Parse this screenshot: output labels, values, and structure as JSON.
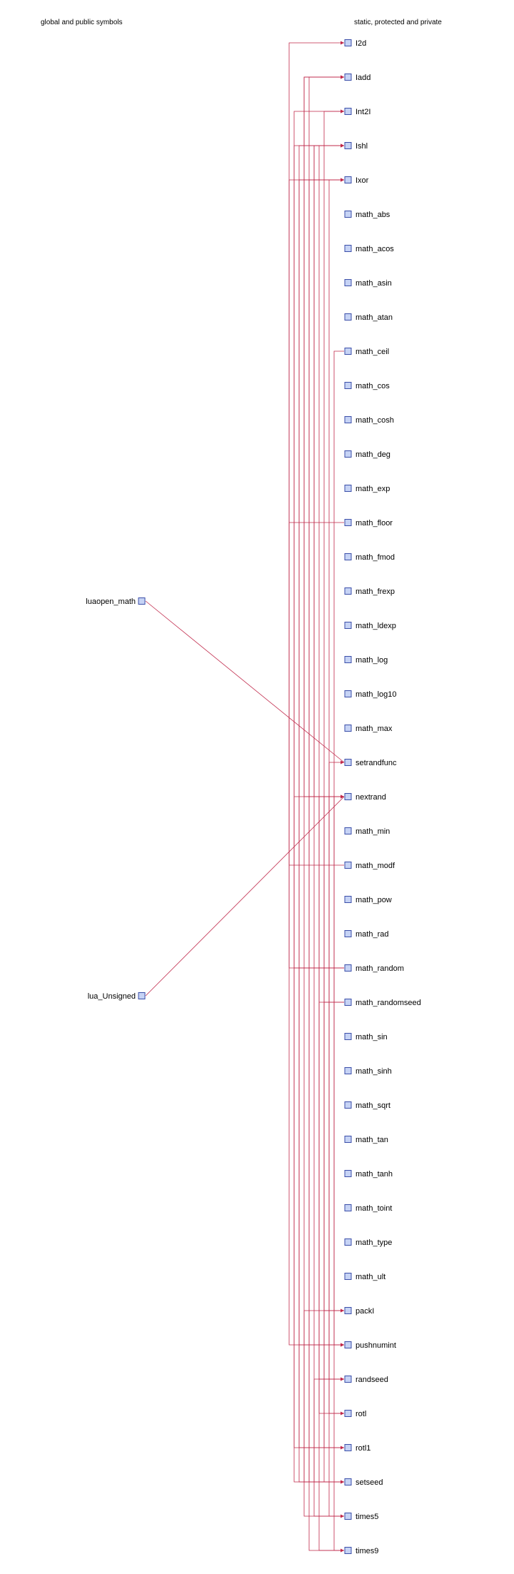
{
  "headers": {
    "left": "global and public symbols",
    "right": "static, protected and private"
  },
  "global_symbols": [
    {
      "id": "luaopen_math",
      "label": "luaopen_math"
    },
    {
      "id": "lua_Unsigned",
      "label": "lua_Unsigned"
    }
  ],
  "static_symbols": [
    {
      "id": "I2d",
      "label": "I2d"
    },
    {
      "id": "Iadd",
      "label": "Iadd"
    },
    {
      "id": "Int2I",
      "label": "Int2I"
    },
    {
      "id": "Ishl",
      "label": "Ishl"
    },
    {
      "id": "Ixor",
      "label": "Ixor"
    },
    {
      "id": "math_abs",
      "label": "math_abs"
    },
    {
      "id": "math_acos",
      "label": "math_acos"
    },
    {
      "id": "math_asin",
      "label": "math_asin"
    },
    {
      "id": "math_atan",
      "label": "math_atan"
    },
    {
      "id": "math_ceil",
      "label": "math_ceil"
    },
    {
      "id": "math_cos",
      "label": "math_cos"
    },
    {
      "id": "math_cosh",
      "label": "math_cosh"
    },
    {
      "id": "math_deg",
      "label": "math_deg"
    },
    {
      "id": "math_exp",
      "label": "math_exp"
    },
    {
      "id": "math_floor",
      "label": "math_floor"
    },
    {
      "id": "math_fmod",
      "label": "math_fmod"
    },
    {
      "id": "math_frexp",
      "label": "math_frexp"
    },
    {
      "id": "math_ldexp",
      "label": "math_ldexp"
    },
    {
      "id": "math_log",
      "label": "math_log"
    },
    {
      "id": "math_log10",
      "label": "math_log10"
    },
    {
      "id": "math_max",
      "label": "math_max"
    },
    {
      "id": "setrandfunc",
      "label": "setrandfunc"
    },
    {
      "id": "nextrand",
      "label": "nextrand"
    },
    {
      "id": "math_min",
      "label": "math_min"
    },
    {
      "id": "math_modf",
      "label": "math_modf"
    },
    {
      "id": "math_pow",
      "label": "math_pow"
    },
    {
      "id": "math_rad",
      "label": "math_rad"
    },
    {
      "id": "math_random",
      "label": "math_random"
    },
    {
      "id": "math_randomseed",
      "label": "math_randomseed"
    },
    {
      "id": "math_sin",
      "label": "math_sin"
    },
    {
      "id": "math_sinh",
      "label": "math_sinh"
    },
    {
      "id": "math_sqrt",
      "label": "math_sqrt"
    },
    {
      "id": "math_tan",
      "label": "math_tan"
    },
    {
      "id": "math_tanh",
      "label": "math_tanh"
    },
    {
      "id": "math_toint",
      "label": "math_toint"
    },
    {
      "id": "math_type",
      "label": "math_type"
    },
    {
      "id": "math_ult",
      "label": "math_ult"
    },
    {
      "id": "packI",
      "label": "packI"
    },
    {
      "id": "pushnumint",
      "label": "pushnumint"
    },
    {
      "id": "randseed",
      "label": "randseed"
    },
    {
      "id": "rotl",
      "label": "rotl"
    },
    {
      "id": "rotl1",
      "label": "rotl1"
    },
    {
      "id": "setseed",
      "label": "setseed"
    },
    {
      "id": "times5",
      "label": "times5"
    },
    {
      "id": "times9",
      "label": "times9"
    }
  ],
  "edges": [
    {
      "from": "luaopen_math",
      "to": "setrandfunc"
    },
    {
      "from": "lua_Unsigned",
      "to": "nextrand"
    },
    {
      "from": "math_random",
      "to": "I2d"
    },
    {
      "from": "math_random",
      "to": "nextrand"
    },
    {
      "from": "math_random",
      "to": "pushnumint"
    },
    {
      "from": "nextrand",
      "to": "Iadd"
    },
    {
      "from": "nextrand",
      "to": "Ixor"
    },
    {
      "from": "nextrand",
      "to": "Ishl"
    },
    {
      "from": "nextrand",
      "to": "rotl"
    },
    {
      "from": "nextrand",
      "to": "rotl1"
    },
    {
      "from": "nextrand",
      "to": "times5"
    },
    {
      "from": "nextrand",
      "to": "times9"
    },
    {
      "from": "math_modf",
      "to": "Ixor"
    },
    {
      "from": "setseed",
      "to": "Int2I"
    },
    {
      "from": "setseed",
      "to": "Ishl"
    },
    {
      "from": "setseed",
      "to": "packI"
    },
    {
      "from": "setseed",
      "to": "nextrand"
    },
    {
      "from": "randseed",
      "to": "setseed"
    },
    {
      "from": "math_randomseed",
      "to": "randseed"
    },
    {
      "from": "math_randomseed",
      "to": "setseed"
    },
    {
      "from": "setrandfunc",
      "to": "randseed"
    },
    {
      "from": "math_ceil",
      "to": "pushnumint"
    },
    {
      "from": "math_floor",
      "to": "pushnumint"
    },
    {
      "from": "rotl1",
      "to": "Ishl"
    },
    {
      "from": "rotl1",
      "to": "Ixor"
    },
    {
      "from": "times5",
      "to": "Iadd"
    },
    {
      "from": "times9",
      "to": "Iadd"
    },
    {
      "from": "times5",
      "to": "Ishl"
    },
    {
      "from": "times9",
      "to": "Ishl"
    },
    {
      "from": "packI",
      "to": "Int2I"
    },
    {
      "from": "rotl",
      "to": "Ixor"
    }
  ],
  "colors": {
    "edge": "#c0284a",
    "node_fill": "#c6d3f5",
    "node_border": "#3a4ea8"
  }
}
